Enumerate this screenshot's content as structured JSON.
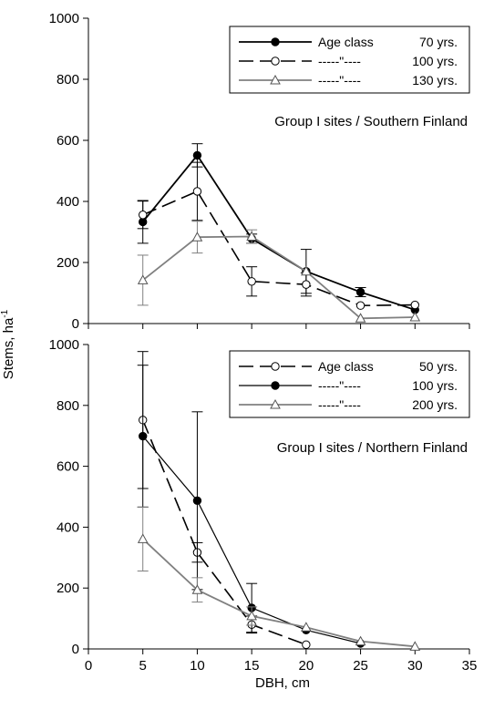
{
  "chart_data": [
    {
      "type": "line",
      "annotation": "Group I sites / Southern Finland",
      "ylim": [
        0,
        1000
      ],
      "yticks": [
        0,
        200,
        400,
        600,
        800,
        1000
      ],
      "xlim": [
        0,
        35
      ],
      "legend_position": "top-right",
      "series": [
        {
          "name": "Age class 70 yrs.",
          "label_left": "Age class",
          "label_right": "70 yrs.",
          "style": "solid",
          "marker": "filled-circle",
          "color": "#000000",
          "x": [
            5,
            10,
            15,
            20,
            25,
            30
          ],
          "y": [
            333,
            551,
            278,
            171,
            103,
            45
          ],
          "err": [
            70,
            38,
            15,
            72,
            15,
            0
          ]
        },
        {
          "name": "-----\"---- 100 yrs.",
          "label_left": "-----\"----",
          "label_right": "100 yrs.",
          "style": "dashed",
          "marker": "open-circle",
          "color": "#000000",
          "x": [
            5,
            10,
            15,
            20,
            25,
            30
          ],
          "y": [
            356,
            433,
            138,
            128,
            59,
            61
          ],
          "err": [
            45,
            95,
            48,
            38,
            0,
            0
          ]
        },
        {
          "name": "-----\"---- 130 yrs.",
          "label_left": "-----\"----",
          "label_right": "130 yrs.",
          "style": "solid",
          "marker": "open-triangle",
          "color": "#808080",
          "x": [
            5,
            10,
            15,
            20,
            25,
            30
          ],
          "y": [
            142,
            283,
            285,
            171,
            17,
            21
          ],
          "err": [
            82,
            52,
            22,
            0,
            0,
            0
          ]
        }
      ]
    },
    {
      "type": "line",
      "annotation": "Group I sites / Northern Finland",
      "ylim": [
        0,
        1000
      ],
      "yticks": [
        0,
        200,
        400,
        600,
        800,
        1000
      ],
      "xlabel": "DBH, cm",
      "xlim": [
        0,
        35
      ],
      "xticks": [
        0,
        5,
        10,
        15,
        20,
        25,
        30,
        35
      ],
      "legend_position": "top-right",
      "series": [
        {
          "name": "Age class 50 yrs.",
          "label_left": "Age class",
          "label_right": "50 yrs.",
          "style": "dashed",
          "marker": "open-circle",
          "color": "#000000",
          "x": [
            5,
            10,
            15,
            20
          ],
          "y": [
            752,
            317,
            80,
            14
          ],
          "err": [
            225,
            32,
            28,
            0
          ]
        },
        {
          "name": "-----\"---- 100 yrs.",
          "label_left": "-----\"----",
          "label_right": "100 yrs.",
          "style": "solid-thin",
          "marker": "filled-circle",
          "color": "#000000",
          "x": [
            5,
            10,
            15,
            20,
            25
          ],
          "y": [
            699,
            487,
            135,
            62,
            18
          ],
          "err": [
            233,
            292,
            80,
            0,
            0
          ]
        },
        {
          "name": "-----\"---- 200 yrs.",
          "label_left": "-----\"----",
          "label_right": "200 yrs.",
          "style": "solid",
          "marker": "open-triangle",
          "color": "#808080",
          "x": [
            5,
            10,
            15,
            20,
            25,
            30
          ],
          "y": [
            361,
            194,
            108,
            71,
            25,
            8
          ],
          "err": [
            105,
            40,
            30,
            0,
            0,
            0
          ]
        }
      ]
    }
  ],
  "ylabel": "Stems, ha",
  "ylabel_sup": "-1"
}
